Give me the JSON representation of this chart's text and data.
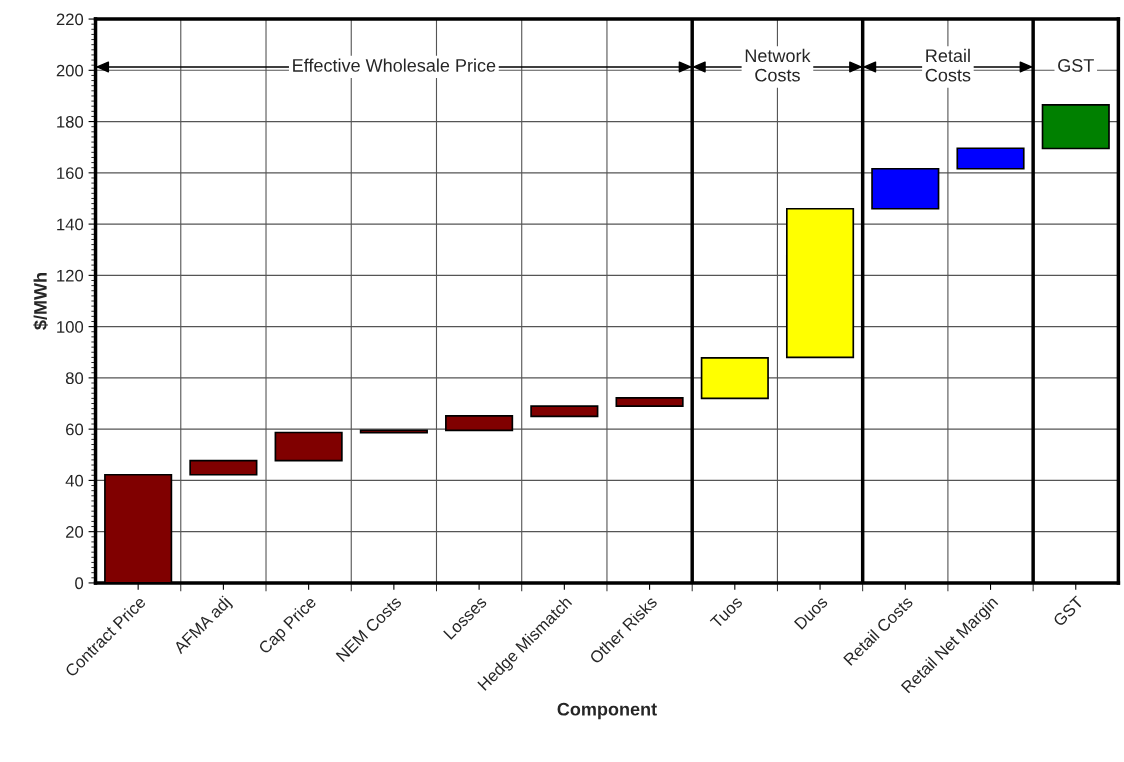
{
  "chart_data": {
    "type": "bar",
    "xlabel": "Component",
    "ylabel": "$/MWh",
    "categories": [
      "Contract Price",
      "AFMA adj",
      "Cap Price",
      "NEM Costs",
      "Losses",
      "Hedge Mismatch",
      "Other Risks",
      "Tuos",
      "Duos",
      "Retail Costs",
      "Retail Net Margin",
      "GST"
    ],
    "base": [
      0,
      42.2,
      47.7,
      58.6,
      59.5,
      65,
      69,
      72,
      88,
      146,
      161.6,
      169.5
    ],
    "values": [
      42.2,
      5.5,
      11,
      0.9,
      5.7,
      4,
      3.2,
      15.8,
      58,
      15.6,
      8,
      17
    ],
    "colors": [
      "#800000",
      "#800000",
      "#800000",
      "#800000",
      "#800000",
      "#800000",
      "#800000",
      "#ffff00",
      "#ffff00",
      "#0000ff",
      "#0000ff",
      "#008000"
    ],
    "ylim": [
      0,
      220
    ],
    "yticks": [
      0,
      20,
      40,
      60,
      80,
      100,
      120,
      140,
      160,
      180,
      200,
      220
    ],
    "grid": true,
    "annotations": [
      "Effective Wholesale Price",
      "Network Costs",
      "Retail Costs",
      "GST"
    ]
  }
}
